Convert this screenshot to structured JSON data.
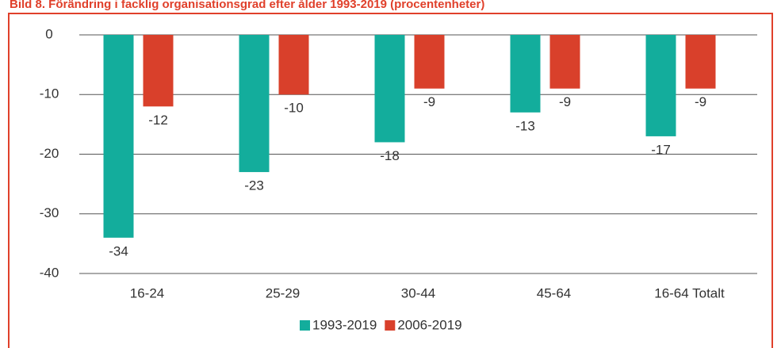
{
  "chart_data": {
    "type": "bar",
    "title": "Bild 8. Förändring i facklig organisationsgrad efter ålder 1993-2019 (procentenheter)",
    "categories": [
      "16-24",
      "25-29",
      "30-44",
      "45-64",
      "16-64 Totalt"
    ],
    "series": [
      {
        "name": "1993-2019",
        "color": "#13ad9c",
        "values": [
          -34,
          -23,
          -18,
          -13,
          -17
        ]
      },
      {
        "name": "2006-2019",
        "color": "#d9402b",
        "values": [
          -12,
          -10,
          -9,
          -9,
          -9
        ]
      }
    ],
    "ylim": [
      -40,
      0
    ],
    "yticks": [
      0,
      -10,
      -20,
      -30,
      -40
    ],
    "grid": true,
    "legend": "bottom"
  }
}
